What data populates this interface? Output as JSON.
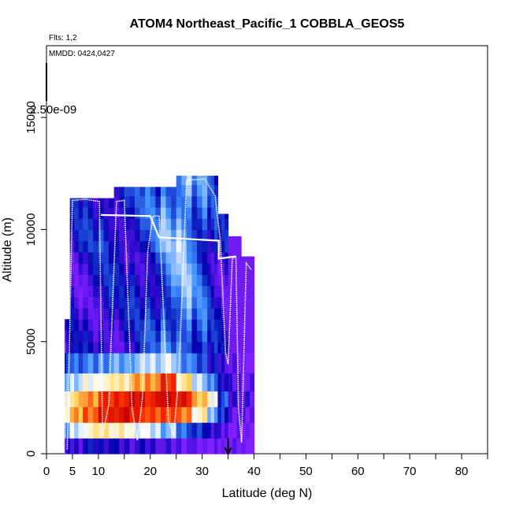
{
  "chart_data": {
    "type": "heatmap",
    "title": "ATOM4 Northeast_Pacific_1 COBBLA_GEOS5",
    "annotations": {
      "flights": "Flts: 1,2",
      "dates": "MMDD: 0424,0427"
    },
    "xlabel": "Latitude (deg N)",
    "ylabel": "Altitude (m)",
    "xlim": [
      0,
      85
    ],
    "ylim": [
      0,
      18200
    ],
    "x_ticks_labeled": [
      0,
      5,
      10,
      20,
      30,
      40,
      50,
      60,
      70,
      80
    ],
    "x_ticks_minor": [
      15,
      25,
      35,
      45,
      55,
      65,
      75,
      85
    ],
    "y_ticks": [
      0,
      5000,
      10000,
      15000
    ],
    "colorbar_top_label": "2.50e-09",
    "colormap": [
      "#7f1fff",
      "#0000b0",
      "#3e8fff",
      "#ffffff",
      "#ffd050",
      "#ff3300",
      "#c80000"
    ],
    "grid": false,
    "columns": [
      {
        "x0": 3.5,
        "x1": 4.5,
        "z0": 0,
        "z1": 6000,
        "low": [
          0.1,
          0.35,
          0.55,
          0.5,
          0.35,
          0.25
        ],
        "high": 0.08
      },
      {
        "x0": 4.5,
        "x1": 7,
        "z0": 0,
        "z1": 11400,
        "low": [
          0.1,
          0.45,
          0.7,
          0.65,
          0.45,
          0.3
        ],
        "high": 0.1
      },
      {
        "x0": 7,
        "x1": 10,
        "z0": 0,
        "z1": 11400,
        "low": [
          0.15,
          0.55,
          0.8,
          0.75,
          0.5,
          0.3
        ],
        "high": 0.12
      },
      {
        "x0": 10,
        "x1": 13,
        "z0": 0,
        "z1": 11400,
        "low": [
          0.15,
          0.6,
          0.9,
          0.85,
          0.55,
          0.35
        ],
        "high": 0.15
      },
      {
        "x0": 13,
        "x1": 16,
        "z0": 0,
        "z1": 11900,
        "low": [
          0.1,
          0.55,
          0.95,
          0.9,
          0.6,
          0.35
        ],
        "high": 0.12
      },
      {
        "x0": 16,
        "x1": 19,
        "z0": 0,
        "z1": 11900,
        "low": [
          0.1,
          0.5,
          0.9,
          0.95,
          0.7,
          0.4
        ],
        "high": 0.15
      },
      {
        "x0": 19,
        "x1": 22,
        "z0": 0,
        "z1": 11900,
        "low": [
          0.1,
          0.45,
          0.8,
          0.9,
          0.75,
          0.45
        ],
        "high": 0.2
      },
      {
        "x0": 22,
        "x1": 25,
        "z0": 0,
        "z1": 11900,
        "low": [
          0.05,
          0.4,
          0.85,
          1.0,
          0.85,
          0.45
        ],
        "high": 0.3
      },
      {
        "x0": 25,
        "x1": 28,
        "z0": 0,
        "z1": 12400,
        "low": [
          0.05,
          0.3,
          0.75,
          0.9,
          0.6,
          0.35
        ],
        "high": 0.35
      },
      {
        "x0": 28,
        "x1": 31,
        "z0": 0,
        "z1": 12400,
        "low": [
          0.0,
          0.2,
          0.55,
          0.7,
          0.45,
          0.25
        ],
        "high": 0.25
      },
      {
        "x0": 31,
        "x1": 33,
        "z0": 0,
        "z1": 12400,
        "low": [
          0.0,
          0.12,
          0.4,
          0.5,
          0.3,
          0.15
        ],
        "high": 0.15
      },
      {
        "x0": 33,
        "x1": 35,
        "z0": 0,
        "z1": 10700,
        "low": [
          0.0,
          0.05,
          0.2,
          0.25,
          0.15,
          0.1
        ],
        "high": 0.1
      },
      {
        "x0": 35,
        "x1": 37.5,
        "z0": 0,
        "z1": 9700,
        "low": [
          0.0,
          0.0,
          0.05,
          0.1,
          0.05,
          0.02
        ],
        "high": 0.05
      },
      {
        "x0": 37.5,
        "x1": 40,
        "z0": 0,
        "z1": 8800,
        "low": [
          0.0,
          0.0,
          0.02,
          0.05,
          0.02,
          0.0
        ],
        "high": 0.02
      }
    ],
    "flight_track": [
      [
        4.0,
        200
      ],
      [
        5.0,
        11300
      ],
      [
        7.5,
        11350
      ],
      [
        10.2,
        11250
      ],
      [
        10.8,
        800
      ],
      [
        12.0,
        2200
      ],
      [
        13.5,
        11250
      ],
      [
        15.0,
        11300
      ],
      [
        16.5,
        2000
      ],
      [
        17.5,
        600
      ],
      [
        18.5,
        2500
      ],
      [
        19.5,
        9000
      ],
      [
        20.5,
        10600
      ],
      [
        21.7,
        10600
      ],
      [
        23.5,
        1500
      ],
      [
        24.5,
        800
      ],
      [
        25.5,
        3500
      ],
      [
        27.0,
        12200
      ],
      [
        30.5,
        12250
      ],
      [
        32.5,
        11500
      ],
      [
        33.5,
        9500
      ],
      [
        34.5,
        4500
      ],
      [
        35.0,
        4000
      ],
      [
        35.8,
        8700
      ],
      [
        36.5,
        8800
      ],
      [
        37.0,
        2000
      ],
      [
        37.6,
        500
      ],
      [
        38.5,
        8500
      ],
      [
        39.5,
        8200
      ]
    ],
    "flight_track_upper": [
      [
        10.5,
        10650
      ],
      [
        20.0,
        10600
      ],
      [
        21.7,
        9650
      ],
      [
        33.2,
        9500
      ],
      [
        33.2,
        8700
      ],
      [
        36.5,
        8800
      ]
    ],
    "marker_arrow": {
      "x": 35,
      "y_from": 700,
      "y_to": 0
    }
  }
}
